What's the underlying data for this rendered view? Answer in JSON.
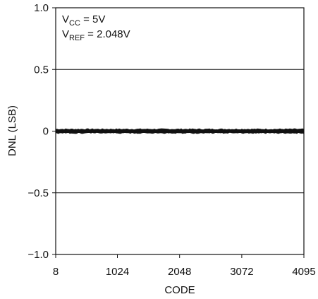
{
  "chart_data": {
    "type": "line",
    "xlabel": "CODE",
    "ylabel": "DNL (LSB)",
    "xlim": [
      8,
      4095
    ],
    "ylim": [
      -1.0,
      1.0
    ],
    "x_ticks": [
      8,
      1024,
      2048,
      3072,
      4095
    ],
    "x_tick_labels": [
      "8",
      "1024",
      "2048",
      "3072",
      "4095"
    ],
    "y_ticks": [
      1.0,
      0.5,
      0,
      -0.5,
      -1.0
    ],
    "y_tick_labels": [
      "1.0",
      "0.5",
      "0",
      "−0.5",
      "−1.0"
    ],
    "gridlines_y": [
      0.5,
      0,
      -0.5
    ],
    "annotations": [
      {
        "main": "V",
        "sub": "CC",
        "rest": " = 5V"
      },
      {
        "main": "V",
        "sub": "REF",
        "rest": " = 2.048V"
      }
    ],
    "series": [
      {
        "x": [
          8,
          4095
        ],
        "y": [
          0,
          0
        ],
        "band": [
          -0.02,
          0.02
        ],
        "color": "#111111"
      }
    ]
  }
}
